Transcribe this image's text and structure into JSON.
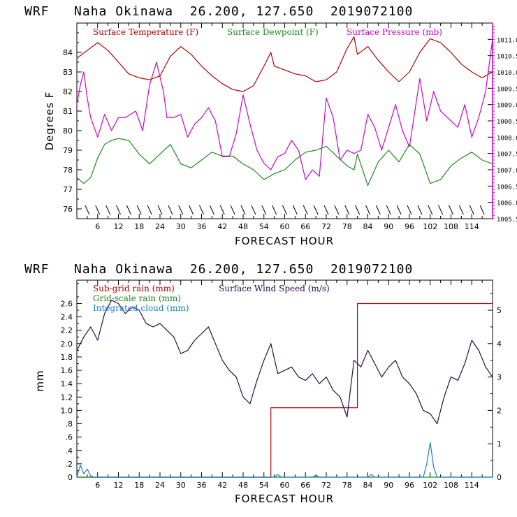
{
  "colors": {
    "temperature": "#b20000",
    "dewpoint": "#1a8a1a",
    "pressure": "#d000d0",
    "subgrid_rain": "#b20000",
    "grid_rain": "#1a8a1a",
    "cloud": "#1a7fc8",
    "wind": "#2a0a4a"
  },
  "chart_data": [
    {
      "type": "line",
      "title": "WRF   Naha Okinawa  26.200, 127.650  2019072100",
      "xlabel": "FORECAST HOUR",
      "ylabel": "Degrees F",
      "xlim": [
        0,
        120
      ],
      "ylim": [
        75.5,
        85.5
      ],
      "y2lim": [
        1005.5,
        1011.5
      ],
      "x_ticks": [
        "6",
        "12",
        "18",
        "24",
        "30",
        "36",
        "42",
        "48",
        "54",
        "60",
        "66",
        "72",
        "78",
        "84",
        "90",
        "96",
        "102",
        "108",
        "114"
      ],
      "y_ticks": [
        "76",
        "77",
        "78",
        "79",
        "80",
        "81",
        "82",
        "83",
        "84"
      ],
      "y2_ticks": [
        "1005.5",
        "1006.0",
        "1006.5",
        "1007.0",
        "1007.5",
        "1008.0",
        "1008.5",
        "1009.0",
        "1009.5",
        "1010.0",
        "1010.5",
        "1011.0"
      ],
      "legend": [
        "Surface Temperature (F)",
        "Surface Dewpoint (F)",
        "Surface Pressure (mb)"
      ],
      "series": [
        {
          "name": "Surface Temperature (F)",
          "axis": "left",
          "x": [
            0,
            3,
            6,
            9,
            12,
            15,
            18,
            21,
            24,
            27,
            30,
            33,
            36,
            39,
            42,
            45,
            48,
            51,
            54,
            56,
            57,
            60,
            63,
            66,
            69,
            72,
            75,
            78,
            80,
            81,
            84,
            87,
            90,
            93,
            96,
            99,
            102,
            105,
            108,
            111,
            114,
            117,
            120
          ],
          "values": [
            83.7,
            84.1,
            84.5,
            84.1,
            83.5,
            82.9,
            82.7,
            82.6,
            82.8,
            83.8,
            84.3,
            83.9,
            83.3,
            82.8,
            82.4,
            82.1,
            82.0,
            82.3,
            83.3,
            84.0,
            83.3,
            83.1,
            82.9,
            82.8,
            82.5,
            82.6,
            83.0,
            84.2,
            84.8,
            83.9,
            84.3,
            83.6,
            83.0,
            82.5,
            83.0,
            84.0,
            84.7,
            84.5,
            84.0,
            83.4,
            83.0,
            82.7,
            83.0
          ]
        },
        {
          "name": "Surface Dewpoint (F)",
          "axis": "left",
          "x": [
            0,
            2,
            4,
            6,
            8,
            10,
            12,
            15,
            18,
            21,
            24,
            27,
            30,
            33,
            36,
            39,
            42,
            45,
            48,
            51,
            54,
            57,
            60,
            63,
            66,
            69,
            72,
            75,
            78,
            80,
            81,
            84,
            87,
            90,
            93,
            96,
            99,
            102,
            105,
            108,
            111,
            114,
            117,
            120
          ],
          "values": [
            77.6,
            77.3,
            77.6,
            78.6,
            79.3,
            79.5,
            79.6,
            79.5,
            78.8,
            78.3,
            78.8,
            79.3,
            78.3,
            78.1,
            78.5,
            78.9,
            78.7,
            78.7,
            78.3,
            78.0,
            77.5,
            77.8,
            78.0,
            78.5,
            78.9,
            79.0,
            79.2,
            78.7,
            78.2,
            78.0,
            78.8,
            77.2,
            78.4,
            79.0,
            78.4,
            79.3,
            78.8,
            77.3,
            77.5,
            78.2,
            78.6,
            78.9,
            78.5,
            78.3
          ]
        },
        {
          "name": "Surface Pressure (mb)",
          "axis": "right",
          "x": [
            0,
            1,
            2,
            3,
            4,
            6,
            8,
            10,
            12,
            14,
            17,
            19,
            21,
            23,
            25,
            26,
            28,
            30,
            32,
            34,
            36,
            38,
            40,
            42,
            44,
            46,
            48,
            50,
            52,
            54,
            56,
            58,
            60,
            62,
            64,
            66,
            68,
            70,
            71,
            72,
            74,
            76,
            78,
            80,
            82,
            84,
            86,
            88,
            90,
            92,
            94,
            96,
            97,
            99,
            101,
            103,
            105,
            107,
            110,
            112,
            114,
            116,
            118,
            120
          ],
          "values": [
            1009.0,
            1009.6,
            1010.0,
            1009.2,
            1008.6,
            1008.0,
            1008.7,
            1008.2,
            1008.6,
            1008.6,
            1008.8,
            1008.2,
            1009.6,
            1010.3,
            1009.4,
            1008.6,
            1008.6,
            1008.7,
            1008.0,
            1008.4,
            1008.6,
            1008.9,
            1008.5,
            1007.4,
            1007.4,
            1008.1,
            1009.3,
            1008.4,
            1007.6,
            1007.2,
            1007.0,
            1007.4,
            1007.5,
            1007.9,
            1007.6,
            1006.7,
            1007.0,
            1006.8,
            1008.0,
            1009.2,
            1008.6,
            1007.3,
            1007.6,
            1007.5,
            1007.6,
            1008.7,
            1008.3,
            1007.6,
            1008.3,
            1009.0,
            1008.2,
            1007.7,
            1008.4,
            1009.8,
            1008.5,
            1009.4,
            1008.8,
            1008.6,
            1008.3,
            1009.0,
            1008.0,
            1008.6,
            1009.4,
            1011.0
          ]
        }
      ]
    },
    {
      "type": "line",
      "title": "WRF   Naha Okinawa  26.200, 127.650  2019072100",
      "xlabel": "FORECAST HOUR",
      "ylabel": "mm",
      "xlim": [
        0,
        120
      ],
      "ylim": [
        0,
        2.95
      ],
      "y2lim": [
        0,
        5.9
      ],
      "x_ticks": [
        "6",
        "12",
        "18",
        "24",
        "30",
        "36",
        "42",
        "48",
        "54",
        "60",
        "66",
        "72",
        "78",
        "84",
        "90",
        "96",
        "102",
        "108",
        "114"
      ],
      "y_ticks": [
        "0",
        ".2",
        ".4",
        ".6",
        ".8",
        "1.0",
        "1.2",
        "1.4",
        "1.6",
        "1.8",
        "2.0",
        "2.2",
        "2.4",
        "2.6"
      ],
      "y2_ticks": [
        "0",
        "1",
        "2",
        "3",
        "4",
        "5"
      ],
      "legend": [
        "Sub-grid rain (mm)",
        "Grid-scale rain (mm)",
        "Integrated cloud (mm)",
        "Surface Wind Speed (m/s)"
      ],
      "series": [
        {
          "name": "Sub-grid rain (mm)",
          "axis": "left",
          "step": true,
          "x": [
            0,
            56,
            56,
            81,
            81,
            120
          ],
          "values": [
            0,
            0,
            1.04,
            1.04,
            2.6,
            2.6
          ]
        },
        {
          "name": "Grid-scale rain (mm)",
          "axis": "left",
          "x": [
            0,
            120
          ],
          "values": [
            0,
            0
          ]
        },
        {
          "name": "Integrated cloud (mm)",
          "axis": "left",
          "x": [
            0,
            1,
            2,
            3,
            4,
            5,
            50,
            57,
            58,
            59,
            68,
            69,
            70,
            84,
            85,
            86,
            100,
            101,
            102,
            103,
            104,
            120
          ],
          "values": [
            0,
            0.18,
            0.05,
            0.12,
            0.02,
            0,
            0,
            0,
            0.04,
            0,
            0,
            0.03,
            0,
            0,
            0.04,
            0,
            0,
            0.2,
            0.52,
            0.15,
            0,
            0
          ]
        },
        {
          "name": "Surface Wind Speed (m/s)",
          "axis": "right",
          "x": [
            0,
            2,
            4,
            6,
            8,
            10,
            12,
            14,
            16,
            18,
            20,
            22,
            24,
            26,
            28,
            30,
            32,
            34,
            36,
            38,
            40,
            42,
            44,
            46,
            48,
            50,
            52,
            54,
            56,
            58,
            60,
            62,
            64,
            66,
            68,
            70,
            72,
            74,
            76,
            78,
            80,
            82,
            84,
            86,
            88,
            90,
            92,
            94,
            96,
            98,
            100,
            102,
            104,
            106,
            108,
            110,
            112,
            114,
            116,
            118,
            120
          ],
          "values": [
            3.8,
            4.2,
            4.5,
            4.1,
            4.9,
            5.3,
            5.2,
            4.9,
            5.1,
            5.0,
            4.6,
            4.5,
            4.6,
            4.4,
            4.2,
            3.7,
            3.8,
            4.1,
            4.3,
            4.5,
            4.0,
            3.5,
            3.2,
            3.0,
            2.4,
            2.2,
            2.9,
            3.5,
            4.0,
            3.1,
            3.2,
            3.3,
            3.0,
            2.9,
            3.1,
            2.8,
            3.0,
            2.6,
            2.4,
            1.8,
            3.5,
            3.3,
            3.8,
            3.4,
            3.0,
            3.3,
            3.5,
            3.0,
            2.8,
            2.5,
            2.0,
            1.9,
            1.6,
            2.4,
            3.0,
            2.9,
            3.4,
            4.1,
            3.8,
            3.3,
            3.0
          ]
        }
      ]
    }
  ]
}
